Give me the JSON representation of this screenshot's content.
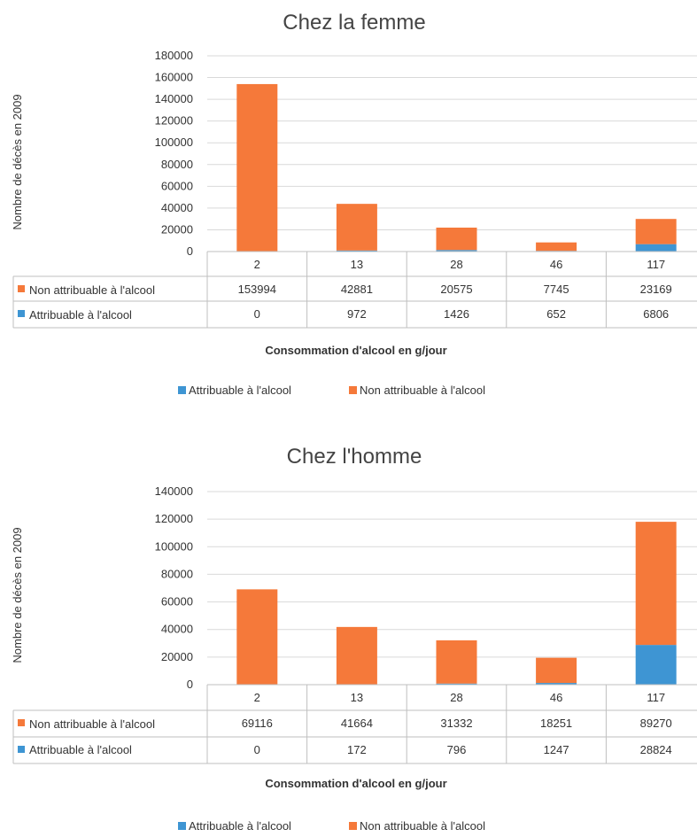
{
  "colors": {
    "attributable": "#3E95D3",
    "non_attributable": "#F5793A",
    "grid": "#D9D9D9",
    "border": "#BFBFBF"
  },
  "chart_data": [
    {
      "type": "bar",
      "stacked": true,
      "title": "Chez la femme",
      "ylabel": "Nombre de décès en 2009",
      "xlabel": "Consommation  d'alcool en g/jour",
      "ylim": [
        0,
        180000
      ],
      "yticks": [
        "180000",
        "160000",
        "140000",
        "120000",
        "100000",
        "80000",
        "60000",
        "40000",
        "20000",
        "0"
      ],
      "categories": [
        "2",
        "13",
        "28",
        "46",
        "117"
      ],
      "series": [
        {
          "name": "Non attribuable à l'alcool",
          "values": [
            153994,
            42881,
            20575,
            7745,
            23169
          ],
          "labels": [
            "153994",
            "42881",
            "20575",
            "7745",
            "23169"
          ]
        },
        {
          "name": "Attribuable à l'alcool",
          "values": [
            0,
            972,
            1426,
            652,
            6806
          ],
          "labels": [
            "0",
            "972",
            "1426",
            "652",
            "6806"
          ]
        }
      ],
      "legend": [
        "Attribuable à l'alcool",
        "Non attribuable à l'alcool"
      ],
      "legend_position": "bottom",
      "grid": true
    },
    {
      "type": "bar",
      "stacked": true,
      "title": "Chez l'homme",
      "ylabel": "Nombre de décès en 2009",
      "xlabel": "Consommation  d'alcool en g/jour",
      "ylim": [
        0,
        140000
      ],
      "yticks": [
        "140000",
        "120000",
        "100000",
        "80000",
        "60000",
        "40000",
        "20000",
        "0"
      ],
      "categories": [
        "2",
        "13",
        "28",
        "46",
        "117"
      ],
      "series": [
        {
          "name": "Non attribuable à l'alcool",
          "values": [
            69116,
            41664,
            31332,
            18251,
            89270
          ],
          "labels": [
            "69116",
            "41664",
            "31332",
            "18251",
            "89270"
          ]
        },
        {
          "name": "Attribuable à l'alcool",
          "values": [
            0,
            172,
            796,
            1247,
            28824
          ],
          "labels": [
            "0",
            "172",
            "796",
            "1247",
            "28824"
          ]
        }
      ],
      "legend": [
        "Attribuable à l'alcool",
        "Non attribuable à l'alcool"
      ],
      "legend_position": "bottom",
      "grid": true
    }
  ]
}
